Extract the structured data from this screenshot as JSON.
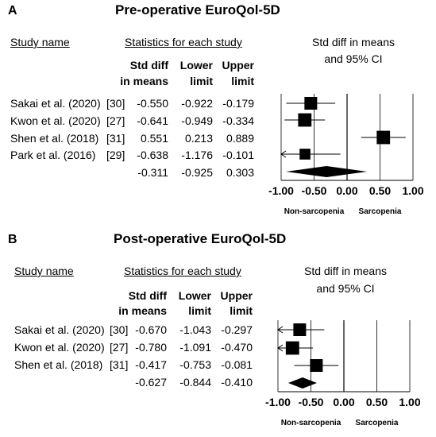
{
  "panels": [
    {
      "letter": "A",
      "title": "Pre-operative EuroQol-5D",
      "header_study": "Study name",
      "header_stats": "Statistics for each study",
      "header_ci": [
        "Std diff in means",
        "and 95% CI"
      ],
      "col_headers": [
        [
          "Std diff",
          "in means"
        ],
        [
          "Lower",
          "limit"
        ],
        [
          "Upper",
          "limit"
        ]
      ],
      "rows": [
        {
          "study": "Sakai et al. (2020)",
          "ref": "[30]",
          "smd": "-0.550",
          "lower": "-0.922",
          "upper": "-0.179"
        },
        {
          "study": "Kwon et al. (2020)",
          "ref": "[27]",
          "smd": "-0.641",
          "lower": "-0.949",
          "upper": "-0.334"
        },
        {
          "study": "Shen et al. (2018)",
          "ref": "[31]",
          "smd": "0.551",
          "lower": "0.213",
          "upper": "0.889"
        },
        {
          "study": "Park et al. (2016)",
          "ref": "[29]",
          "smd": "-0.638",
          "lower": "-1.176",
          "upper": "-0.101"
        }
      ],
      "summary": {
        "smd": "-0.311",
        "lower": "-0.925",
        "upper": "0.303"
      },
      "axis_ticks": [
        "-1.00",
        "-0.50",
        "0.00",
        "0.50",
        "1.00"
      ],
      "favours_left": "Non-sarcopenia",
      "favours_right": "Sarcopenia"
    },
    {
      "letter": "B",
      "title": "Post-operative EuroQol-5D",
      "header_study": "Study name",
      "header_stats": "Statistics for each study",
      "header_ci": [
        "Std diff in means",
        "and 95% CI"
      ],
      "col_headers": [
        [
          "Std diff",
          "in means"
        ],
        [
          "Lower",
          "limit"
        ],
        [
          "Upper",
          "limit"
        ]
      ],
      "rows": [
        {
          "study": "Sakai et al. (2020)",
          "ref": "[30]",
          "smd": "-0.670",
          "lower": "-1.043",
          "upper": "-0.297"
        },
        {
          "study": "Kwon et al. (2020)",
          "ref": "[27]",
          "smd": "-0.780",
          "lower": "-1.091",
          "upper": "-0.470"
        },
        {
          "study": "Shen et al. (2018)",
          "ref": "[31]",
          "smd": "-0.417",
          "lower": "-0.753",
          "upper": "-0.081"
        }
      ],
      "summary": {
        "smd": "-0.627",
        "lower": "-0.844",
        "upper": "-0.410"
      },
      "axis_ticks": [
        "-1.00",
        "-0.50",
        "0.00",
        "0.50",
        "1.00"
      ],
      "favours_left": "Non-sarcopenia",
      "favours_right": "Sarcopenia"
    }
  ],
  "chart_data": [
    {
      "type": "scatter",
      "title": "Pre-operative EuroQol-5D",
      "xlim": [
        -1.0,
        1.0
      ],
      "categories": [
        "Sakai et al. (2020)",
        "Kwon et al. (2020)",
        "Shen et al. (2018)",
        "Park et al. (2016)"
      ],
      "values": [
        -0.55,
        -0.641,
        0.551,
        -0.638
      ],
      "lower": [
        -0.922,
        -0.949,
        0.213,
        -1.176
      ],
      "upper": [
        -0.179,
        -0.334,
        0.889,
        -0.101
      ],
      "weights": [
        1.0,
        1.05,
        1.05,
        0.85
      ],
      "summary": {
        "value": -0.311,
        "lower": -0.925,
        "upper": 0.303
      }
    },
    {
      "type": "scatter",
      "title": "Post-operative EuroQol-5D",
      "xlim": [
        -1.0,
        1.0
      ],
      "categories": [
        "Sakai et al. (2020)",
        "Kwon et al. (2020)",
        "Shen et al. (2018)"
      ],
      "values": [
        -0.67,
        -0.78,
        -0.417
      ],
      "lower": [
        -1.043,
        -1.091,
        -0.753
      ],
      "upper": [
        -0.297,
        -0.47,
        -0.081
      ],
      "weights": [
        1.0,
        1.05,
        1.0
      ],
      "summary": {
        "value": -0.627,
        "lower": -0.844,
        "upper": -0.41
      }
    }
  ]
}
